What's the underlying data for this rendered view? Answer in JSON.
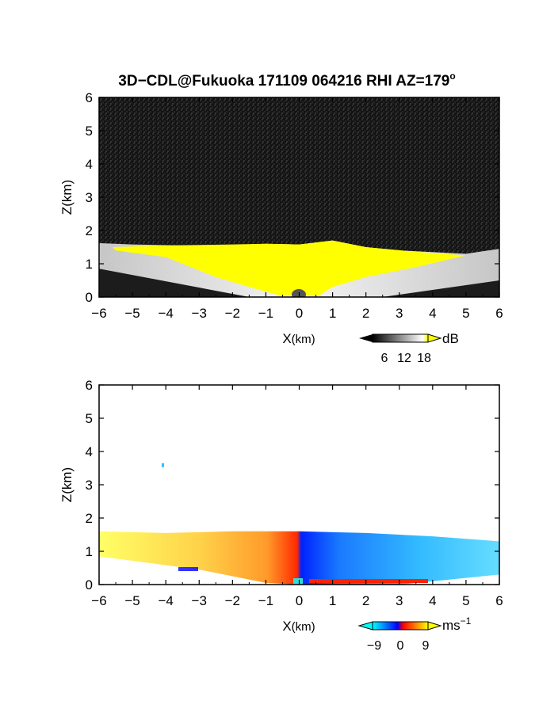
{
  "figure": {
    "title": "3D−CDL@Fukuoka 171109 064216 RHI AZ=179",
    "title_degree": "o"
  },
  "chart_data": [
    {
      "type": "heatmap",
      "panel": "top",
      "xlabel_main": "X",
      "xlabel_unit": "(km)",
      "ylabel": "Z(km)",
      "xlim": [
        -6,
        6
      ],
      "ylim": [
        0,
        6
      ],
      "x_ticks": [
        "−6",
        "−5",
        "−4",
        "−3",
        "−2",
        "−1",
        "0",
        "1",
        "2",
        "3",
        "4",
        "5",
        "6"
      ],
      "y_ticks": [
        "0",
        "1",
        "2",
        "3",
        "4",
        "5",
        "6"
      ],
      "colorbar": {
        "unit": "dB",
        "ticks": [
          "6",
          "12",
          "18"
        ],
        "range": [
          0,
          20
        ],
        "colors": [
          "#000000",
          "#ffffff",
          "#ffff00"
        ]
      },
      "cloud_top_km": [
        {
          "x": -6.0,
          "z": 1.62
        },
        {
          "x": -5.0,
          "z": 1.58
        },
        {
          "x": -4.0,
          "z": 1.56
        },
        {
          "x": -3.0,
          "z": 1.54
        },
        {
          "x": -2.0,
          "z": 1.56
        },
        {
          "x": -1.0,
          "z": 1.6
        },
        {
          "x": 0.0,
          "z": 1.58
        },
        {
          "x": 1.0,
          "z": 1.7
        },
        {
          "x": 2.0,
          "z": 1.5
        },
        {
          "x": 3.0,
          "z": 1.4
        },
        {
          "x": 4.0,
          "z": 1.35
        },
        {
          "x": 5.0,
          "z": 1.3
        },
        {
          "x": 6.0,
          "z": 1.45
        }
      ],
      "ground_line_km": [
        {
          "x": -6.0,
          "z": 0.85
        },
        {
          "x": -1.5,
          "z": 0.0
        },
        {
          "x": 2.5,
          "z": 0.0
        },
        {
          "x": 6.0,
          "z": 0.5
        }
      ]
    },
    {
      "type": "heatmap",
      "panel": "bottom",
      "xlabel_main": "X",
      "xlabel_unit": "(km)",
      "ylabel": "Z(km)",
      "xlim": [
        -6,
        6
      ],
      "ylim": [
        0,
        6
      ],
      "x_ticks": [
        "−6",
        "−5",
        "−4",
        "−3",
        "−2",
        "−1",
        "0",
        "1",
        "2",
        "3",
        "4",
        "5",
        "6"
      ],
      "y_ticks": [
        "0",
        "1",
        "2",
        "3",
        "4",
        "5",
        "6"
      ],
      "colorbar": {
        "unit": "ms",
        "unit_exp": "−1",
        "ticks": [
          "−9",
          "0",
          "9"
        ],
        "range": [
          -12,
          12
        ],
        "colors": [
          "#00ffff",
          "#0000ff",
          "#ff0000",
          "#ffff00"
        ]
      },
      "echo_top_km": [
        {
          "x": -6.0,
          "z": 1.6
        },
        {
          "x": -4.0,
          "z": 1.55
        },
        {
          "x": -2.0,
          "z": 1.6
        },
        {
          "x": 0.0,
          "z": 1.6
        },
        {
          "x": 2.0,
          "z": 1.55
        },
        {
          "x": 4.0,
          "z": 1.45
        },
        {
          "x": 6.0,
          "z": 1.3
        }
      ],
      "echo_bottom_km": [
        {
          "x": -6.0,
          "z": 0.85
        },
        {
          "x": -3.0,
          "z": 0.45
        },
        {
          "x": -1.0,
          "z": 0.05
        },
        {
          "x": 0.0,
          "z": 0.0
        },
        {
          "x": 3.0,
          "z": 0.0
        },
        {
          "x": 6.0,
          "z": 0.3
        }
      ],
      "isolated_point_km": {
        "x": -4.1,
        "z": 3.6
      }
    }
  ]
}
